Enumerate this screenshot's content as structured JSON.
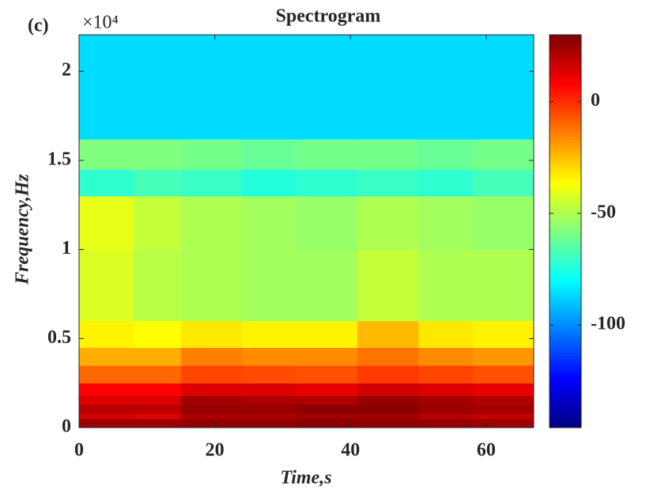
{
  "chart_data": {
    "type": "heatmap",
    "panel_label": "(c)",
    "title": "Spectrogram",
    "x_label": "Time,s",
    "y_label": "Frequency,Hz",
    "y_exponent": "×10⁴",
    "colormap": "jet",
    "x_edges": [
      0,
      8,
      15,
      24,
      32,
      41,
      50,
      58,
      67
    ],
    "y_edges": [
      0,
      0.05,
      0.08,
      0.13,
      0.18,
      0.25,
      0.35,
      0.45,
      0.6,
      1.0,
      1.3,
      1.45,
      1.62,
      2.205
    ],
    "z": [
      [
        25,
        25,
        27,
        27,
        28,
        27,
        26,
        25
      ],
      [
        15,
        14,
        22,
        22,
        24,
        24,
        20,
        18
      ],
      [
        20,
        20,
        26,
        26,
        28,
        28,
        25,
        24
      ],
      [
        14,
        14,
        24,
        22,
        22,
        26,
        24,
        22
      ],
      [
        8,
        8,
        14,
        14,
        12,
        16,
        14,
        12
      ],
      [
        -10,
        -10,
        -4,
        -5,
        -6,
        -2,
        -4,
        -6
      ],
      [
        -22,
        -22,
        -14,
        -16,
        -16,
        -12,
        -16,
        -18
      ],
      [
        -34,
        -36,
        -32,
        -34,
        -34,
        -24,
        -32,
        -34
      ],
      [
        -42,
        -48,
        -50,
        -52,
        -52,
        -46,
        -50,
        -50
      ],
      [
        -40,
        -46,
        -50,
        -52,
        -54,
        -50,
        -52,
        -54
      ],
      [
        -72,
        -68,
        -70,
        -74,
        -72,
        -70,
        -72,
        -68
      ],
      [
        -58,
        -58,
        -60,
        -62,
        -60,
        -60,
        -62,
        -60
      ],
      [
        -86,
        -86,
        -86,
        -86,
        -86,
        -86,
        -86,
        -86
      ]
    ],
    "xlim": [
      0,
      67
    ],
    "xticks": [
      0,
      20,
      40,
      60
    ],
    "ylim": [
      0,
      2.205
    ],
    "yticks": [
      0,
      0.5,
      1,
      1.5,
      2
    ],
    "clim": [
      -146,
      30
    ],
    "cticks": [
      0,
      -50,
      -100
    ]
  }
}
